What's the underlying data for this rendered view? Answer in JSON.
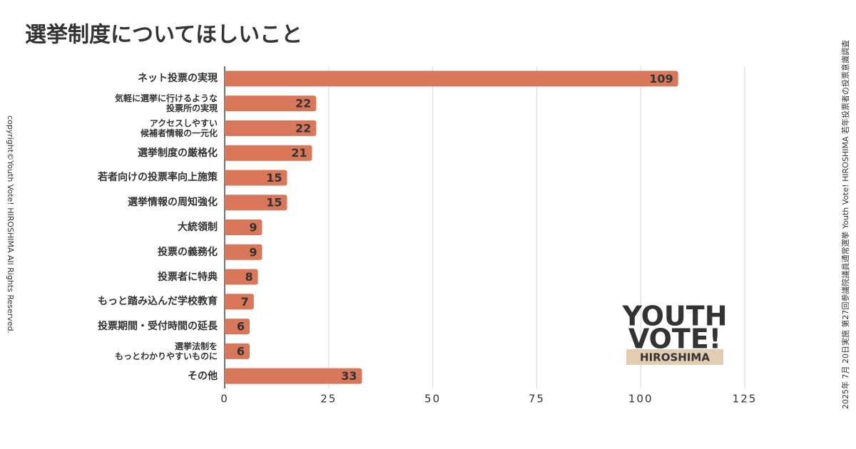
{
  "chart_data": {
    "type": "bar",
    "orientation": "horizontal",
    "title": "選挙制度についてほしいこと",
    "categories": [
      "ネット投票の実現",
      "気軽に選挙に行けるような\n投票所の実現",
      "アクセスしやすい\n候補者情報の一元化",
      "選挙制度の厳格化",
      "若者向けの投票率向上施策",
      "選挙情報の周知強化",
      "大統領制",
      "投票の義務化",
      "投票者に特典",
      "もっと踏み込んだ学校教育",
      "投票期間・受付時間の延長",
      "選挙法制を\nもっとわかりやすいものに",
      "その他"
    ],
    "values": [
      109,
      22,
      22,
      21,
      15,
      15,
      9,
      9,
      8,
      7,
      6,
      6,
      33
    ],
    "color": "#d9775a",
    "xlim": [
      0,
      125
    ],
    "xticks": [
      0,
      25,
      50,
      75,
      100,
      125
    ],
    "grid": true,
    "copyright": "copyright©Youth Vote! HIROSHIMA  All Rights Reserved.",
    "source": "2025年 7月 20日実施  第27回参議院議員通常選挙  Youth Vote! HIROSHIMA 若年投票者の投票意識調査",
    "logo": [
      "YOUTH",
      "VOTE!",
      "HIROSHIMA"
    ]
  }
}
